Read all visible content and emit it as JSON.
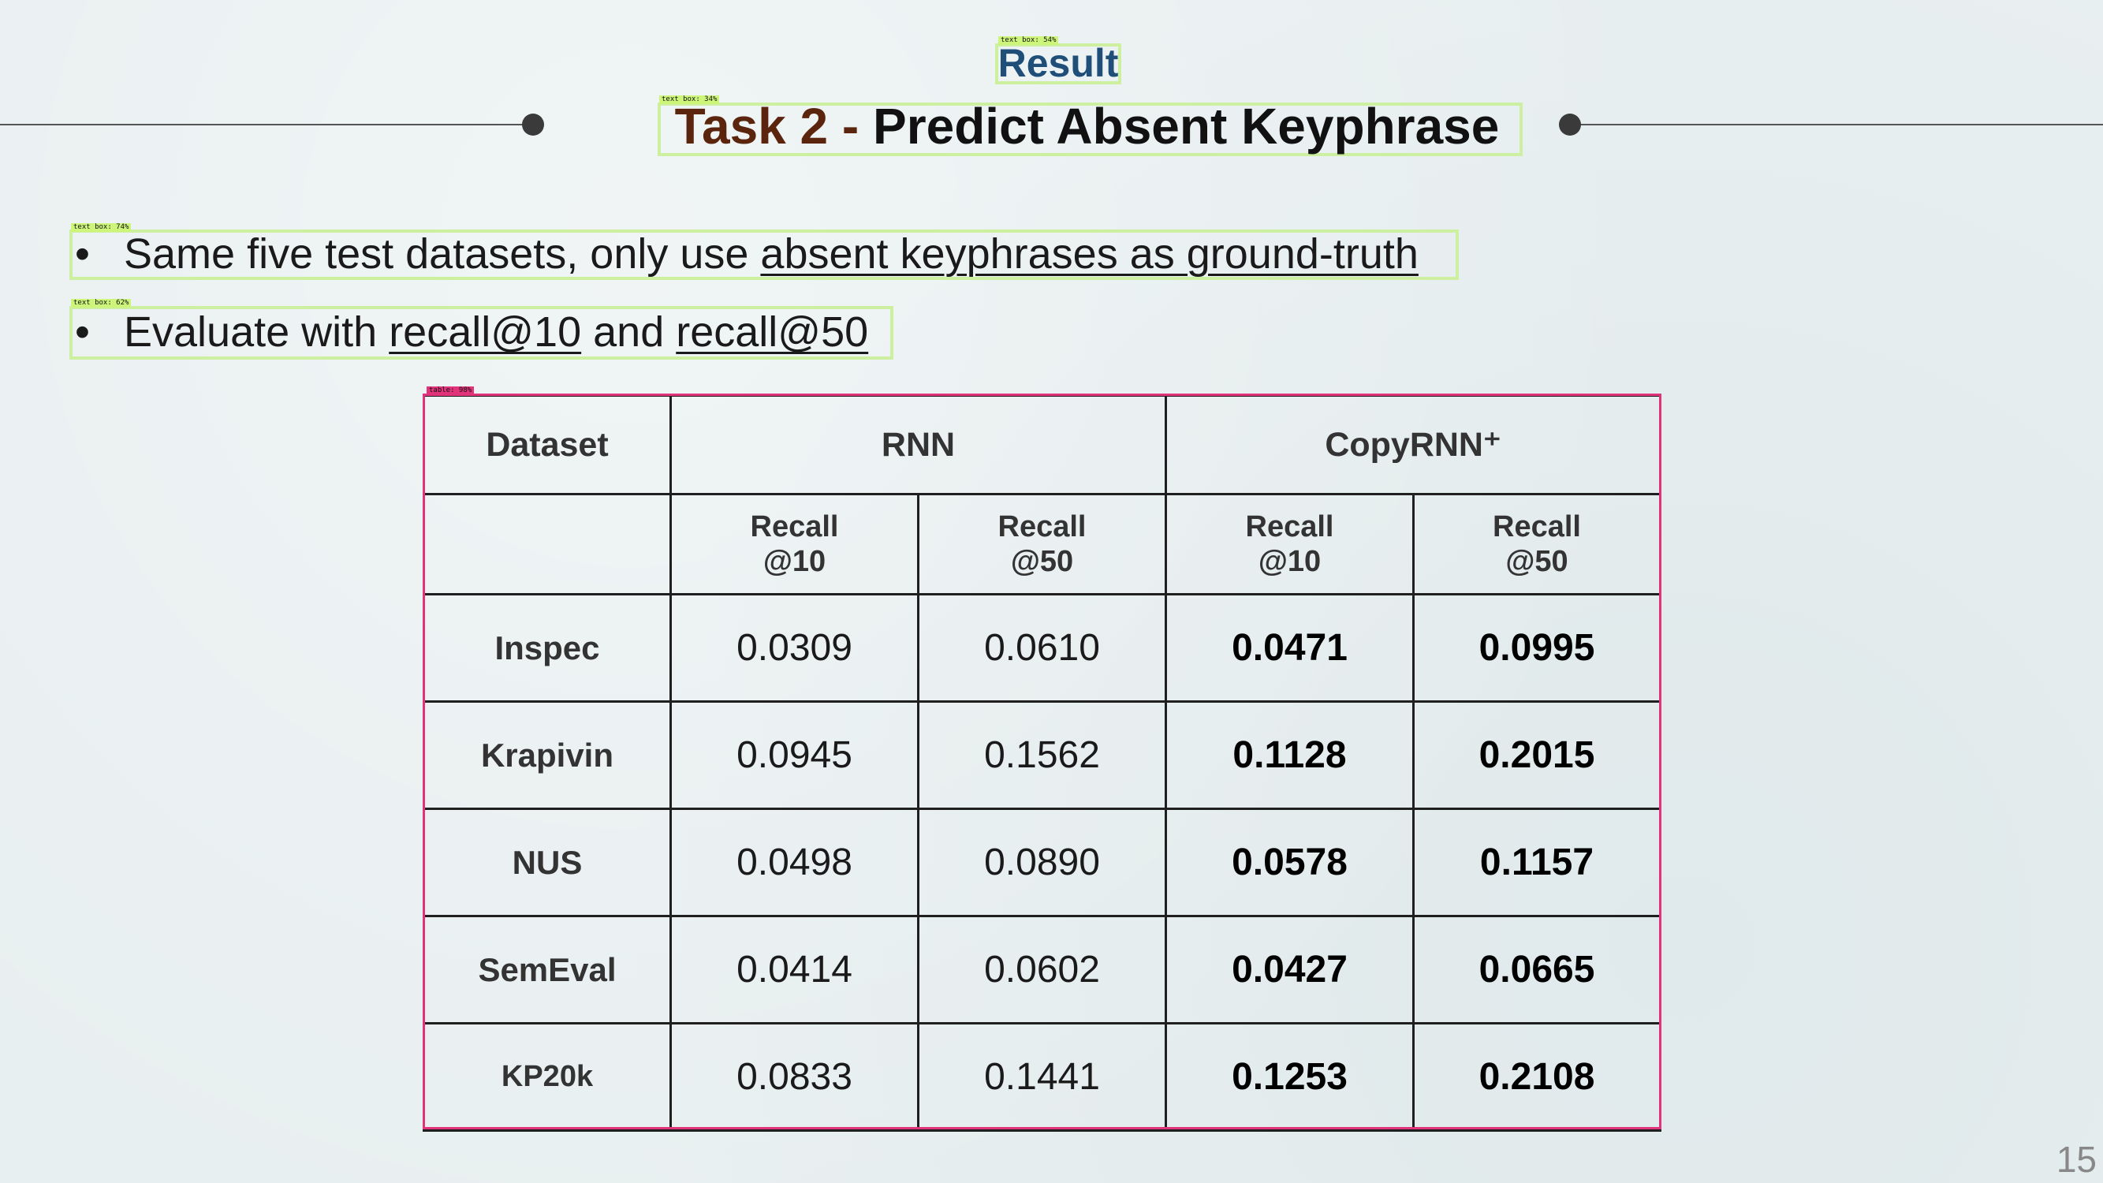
{
  "header": {
    "section_label": "Result",
    "title_task": "Task 2 - ",
    "title_main": "Predict Absent Keyphrase"
  },
  "detections": {
    "section_label_tag": "text box: 54%",
    "title_tag": "text box: 34%",
    "bullet1_tag": "text box: 74%",
    "bullet2_tag": "text box: 62%",
    "table_tag": "table: 98%"
  },
  "bullets": [
    {
      "marker": "•",
      "text_plain": "Same five test datasets, only use ",
      "text_underlined": "absent keyphrases as ground-truth"
    },
    {
      "marker": "•",
      "text_plain": "Evaluate with ",
      "link1": "recall@10",
      "middle": " and ",
      "link2": "recall@50"
    }
  ],
  "table": {
    "col_dataset": "Dataset",
    "group_rnn": "RNN",
    "group_copyrnn": "CopyRNN⁺",
    "sub_headers": [
      "Recall",
      "@10",
      "Recall",
      "@50",
      "Recall",
      "@10",
      "Recall",
      "@50"
    ],
    "rows": [
      {
        "dataset": "Inspec",
        "rnn_r10": "0.0309",
        "rnn_r50": "0.0610",
        "copy_r10": "0.0471",
        "copy_r50": "0.0995"
      },
      {
        "dataset": "Krapivin",
        "rnn_r10": "0.0945",
        "rnn_r50": "0.1562",
        "copy_r10": "0.1128",
        "copy_r50": "0.2015"
      },
      {
        "dataset": "NUS",
        "rnn_r10": "0.0498",
        "rnn_r50": "0.0890",
        "copy_r10": "0.0578",
        "copy_r50": "0.1157"
      },
      {
        "dataset": "SemEval",
        "rnn_r10": "0.0414",
        "rnn_r50": "0.0602",
        "copy_r10": "0.0427",
        "copy_r50": "0.0665"
      },
      {
        "dataset": "KP20k",
        "rnn_r10": "0.0833",
        "rnn_r50": "0.1441",
        "copy_r10": "0.1253",
        "copy_r50": "0.2108"
      }
    ]
  },
  "page_number": "15",
  "colors": {
    "section_label": "#1f4e79",
    "title_task": "#5a250c",
    "detection_box": "#ccf0a0",
    "table_detection": "#e0337a"
  }
}
